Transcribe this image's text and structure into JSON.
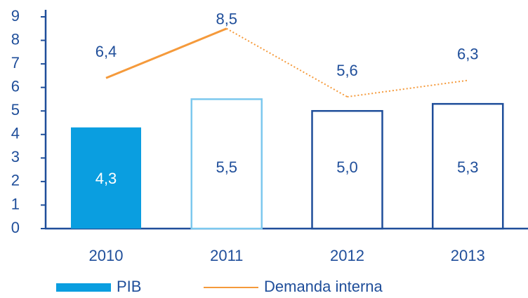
{
  "chart_data": {
    "type": "bar-line",
    "categories": [
      "2010",
      "2011",
      "2012",
      "2013"
    ],
    "series": [
      {
        "name": "PIB",
        "type": "bar",
        "color": "#0a9ee0",
        "colors": [
          "#0a9ee0",
          "#7cc8ee",
          "#1f4e9a",
          "#1f4e9a"
        ],
        "filled": [
          true,
          false,
          false,
          false
        ],
        "values": [
          4.3,
          5.5,
          5.0,
          5.3
        ],
        "value_labels": [
          "4,3",
          "5,5",
          "5,0",
          "5,3"
        ]
      },
      {
        "name": "Demanda interna",
        "type": "line",
        "color": "#f59a3b",
        "segment_styles": [
          "solid",
          "dotted",
          "dotted"
        ],
        "values": [
          6.4,
          8.5,
          5.6,
          6.3
        ],
        "value_labels": [
          "6,4",
          "8,5",
          "5,6",
          "6,3"
        ]
      }
    ],
    "ylim": [
      0,
      9
    ],
    "yticks": [
      0,
      1,
      2,
      3,
      4,
      5,
      6,
      7,
      8,
      9
    ],
    "legend": "bottom"
  }
}
